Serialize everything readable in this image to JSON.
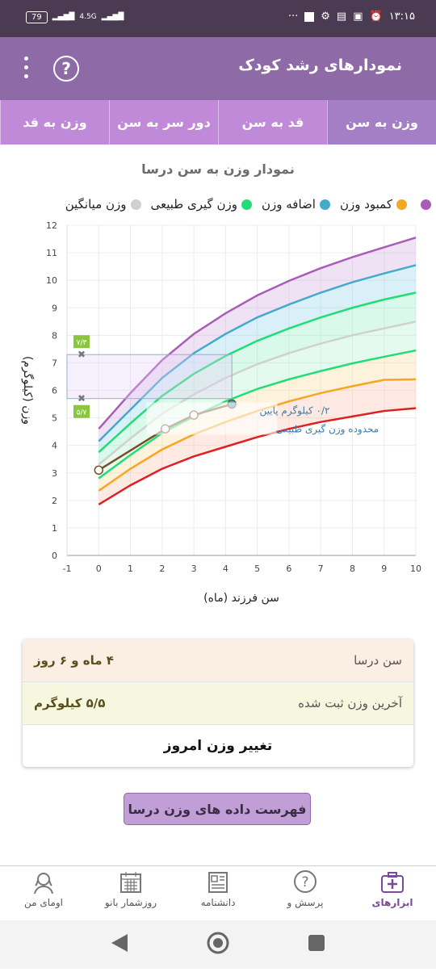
{
  "status": {
    "battery": "79",
    "net": "4.5G",
    "time": "۱۳:۱۵",
    "dots": "···"
  },
  "app": {
    "title": "نمودارهای رشد کودک",
    "help_glyph": "?"
  },
  "tabs": [
    {
      "label": "وزن به سن",
      "active": true
    },
    {
      "label": "قد به سن",
      "active": false
    },
    {
      "label": "دور سر به سن",
      "active": false
    },
    {
      "label": "وزن به قد",
      "active": false
    }
  ],
  "chart": {
    "title": "نمودار وزن به سن درسا"
  },
  "legend": [
    {
      "label": "",
      "color": "#a95db8"
    },
    {
      "label": "کمبود وزن",
      "color": "#f5a623"
    },
    {
      "label": "اضافه وزن",
      "color": "#44aacc"
    },
    {
      "label": "وزن گیری طبیعی",
      "color": "#22dd77"
    },
    {
      "label": "وزن میانگین",
      "color": "#d0d0d0"
    }
  ],
  "chart_data": {
    "type": "line",
    "xlabel": "سن فرزند (ماه)",
    "ylabel": "وزن (کیلوگرم)",
    "xlim": [
      -1,
      10
    ],
    "ylim": [
      0,
      12
    ],
    "x_ticks": [
      -1,
      0,
      1,
      2,
      3,
      4,
      5,
      6,
      7,
      8,
      9,
      10
    ],
    "y_ticks": [
      0,
      1,
      2,
      3,
      4,
      5,
      6,
      7,
      8,
      9,
      10,
      11,
      12
    ],
    "x": [
      0,
      1,
      2,
      3,
      4,
      5,
      6,
      7,
      8,
      9,
      10
    ],
    "series": [
      {
        "color": "#a95db8",
        "values": [
          4.6,
          5.9,
          7.1,
          8.05,
          8.8,
          9.45,
          9.98,
          10.44,
          10.84,
          11.2,
          11.55
        ]
      },
      {
        "color": "#44aacc",
        "values": [
          4.15,
          5.3,
          6.45,
          7.35,
          8.05,
          8.65,
          9.12,
          9.55,
          9.93,
          10.25,
          10.55
        ]
      },
      {
        "color": "#22dd77",
        "values": [
          3.75,
          4.8,
          5.8,
          6.6,
          7.25,
          7.8,
          8.25,
          8.65,
          9.0,
          9.3,
          9.55
        ]
      },
      {
        "color": "#d0d0d0",
        "values": [
          3.3,
          4.25,
          5.15,
          5.85,
          6.45,
          6.95,
          7.35,
          7.7,
          8.0,
          8.25,
          8.5
        ]
      },
      {
        "color": "#22dd77",
        "values": [
          2.8,
          3.65,
          4.45,
          5.05,
          5.6,
          6.05,
          6.4,
          6.7,
          6.98,
          7.22,
          7.45
        ]
      },
      {
        "color": "#f5a623",
        "values": [
          2.35,
          3.15,
          3.85,
          4.4,
          4.85,
          5.25,
          5.6,
          5.9,
          6.15,
          6.38,
          6.4
        ]
      },
      {
        "color": "#e02020",
        "values": [
          1.85,
          2.55,
          3.15,
          3.6,
          3.95,
          4.3,
          4.6,
          4.85,
          5.05,
          5.25,
          5.35
        ]
      }
    ],
    "child": {
      "x": [
        0,
        2.1,
        3.0,
        4.2
      ],
      "y": [
        3.1,
        4.6,
        5.1,
        5.5
      ],
      "color": "#7a4a24"
    },
    "range_box": {
      "x": [
        -1,
        4.2
      ],
      "y": [
        5.7,
        7.3
      ],
      "low_label": "۵/۷",
      "high_label": "۷/۳"
    },
    "annotation": {
      "line1": "۰/۲ کیلوگرم پایین",
      "line2": "محدوده وزن گیری طبیعی"
    }
  },
  "info": {
    "age_label": "سن درسا",
    "age_value": "۴ ماه و ۶ روز",
    "weight_label": "آخرین وزن ثبت شده",
    "weight_value": "۵/۵ کیلوگرم",
    "change_button": "تغییر وزن امروز"
  },
  "list_button": "فهرست داده های وزن درسا",
  "bottom_nav": [
    {
      "label": "ابزارهای",
      "icon": "medical-kit-icon",
      "active": true
    },
    {
      "label": "پرسش و",
      "icon": "question-icon",
      "active": false
    },
    {
      "label": "دانشنامه",
      "icon": "newspaper-icon",
      "active": false
    },
    {
      "label": "روزشمار بانو",
      "icon": "calendar-icon",
      "active": false
    },
    {
      "label": "اومای من",
      "icon": "woman-avatar-icon",
      "active": false
    }
  ]
}
